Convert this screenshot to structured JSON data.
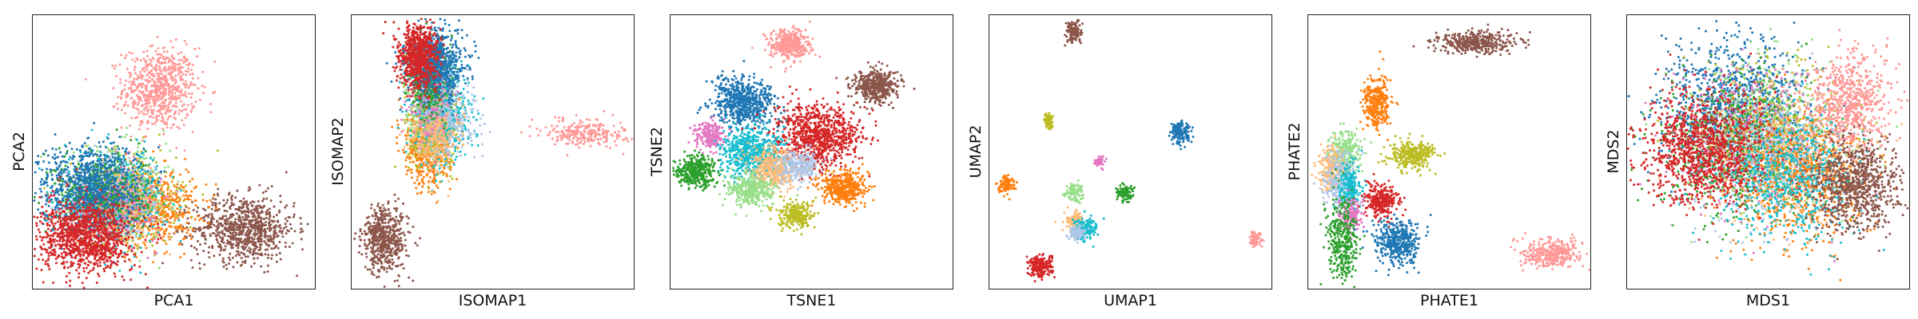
{
  "palette": {
    "blue": "#1f77b4",
    "orange": "#ff7f0e",
    "green": "#2ca02c",
    "red": "#d62728",
    "brown": "#8c564b",
    "pink": "#e377c2",
    "olive": "#bcbd22",
    "cyan": "#17becf",
    "salmon": "#ff9896",
    "lightgreen": "#98df8a",
    "peach": "#ffbb78",
    "lightblue": "#aec7e8"
  },
  "chart_data": [
    {
      "type": "scatter",
      "xlabel": "PCA1",
      "ylabel": "PCA2",
      "xlim": [
        0,
        100
      ],
      "ylim": [
        0,
        100
      ],
      "grid": false,
      "ticks": false,
      "clusters": [
        {
          "color": "salmon",
          "center": [
            45,
            73
          ],
          "spread": [
            6.5,
            7.5
          ],
          "n": 700
        },
        {
          "color": "brown",
          "center": [
            75,
            22
          ],
          "spread": [
            9,
            6
          ],
          "n": 800
        },
        {
          "color": "orange",
          "center": [
            42,
            30
          ],
          "spread": [
            8,
            7
          ],
          "n": 600
        },
        {
          "color": "olive",
          "center": [
            33,
            33
          ],
          "spread": [
            9,
            8
          ],
          "n": 450
        },
        {
          "color": "lightgreen",
          "center": [
            30,
            35
          ],
          "spread": [
            9,
            8
          ],
          "n": 450
        },
        {
          "color": "cyan",
          "center": [
            29,
            34
          ],
          "spread": [
            9,
            8
          ],
          "n": 500
        },
        {
          "color": "lightblue",
          "center": [
            27,
            33
          ],
          "spread": [
            8,
            7
          ],
          "n": 400
        },
        {
          "color": "peach",
          "center": [
            30,
            30
          ],
          "spread": [
            8,
            7
          ],
          "n": 350
        },
        {
          "color": "pink",
          "center": [
            28,
            32
          ],
          "spread": [
            8,
            7
          ],
          "n": 300
        },
        {
          "color": "green",
          "center": [
            24,
            35
          ],
          "spread": [
            8,
            7
          ],
          "n": 400
        },
        {
          "color": "blue",
          "center": [
            20,
            37
          ],
          "spread": [
            9,
            8
          ],
          "n": 900
        },
        {
          "color": "red",
          "center": [
            19,
            19
          ],
          "spread": [
            8,
            6.5
          ],
          "n": 1100
        }
      ]
    },
    {
      "type": "scatter",
      "xlabel": "ISOMAP1",
      "ylabel": "ISOMAP2",
      "xlim": [
        0,
        100
      ],
      "ylim": [
        0,
        100
      ],
      "grid": false,
      "ticks": false,
      "clusters": [
        {
          "color": "salmon",
          "center": [
            83,
            57
          ],
          "spread": [
            7,
            2.5
          ],
          "n": 250
        },
        {
          "color": "brown",
          "center": [
            12,
            18
          ],
          "spread": [
            4,
            6
          ],
          "n": 550
        },
        {
          "color": "orange",
          "center": [
            27,
            52
          ],
          "spread": [
            4,
            7
          ],
          "n": 600
        },
        {
          "color": "olive",
          "center": [
            30,
            60
          ],
          "spread": [
            5,
            8
          ],
          "n": 350
        },
        {
          "color": "lightgreen",
          "center": [
            28,
            66
          ],
          "spread": [
            4,
            8
          ],
          "n": 350
        },
        {
          "color": "cyan",
          "center": [
            32,
            64
          ],
          "spread": [
            5,
            8
          ],
          "n": 500
        },
        {
          "color": "lightblue",
          "center": [
            34,
            62
          ],
          "spread": [
            5,
            7
          ],
          "n": 350
        },
        {
          "color": "peach",
          "center": [
            29,
            56
          ],
          "spread": [
            4,
            6
          ],
          "n": 300
        },
        {
          "color": "pink",
          "center": [
            28,
            70
          ],
          "spread": [
            4,
            7
          ],
          "n": 200
        },
        {
          "color": "green",
          "center": [
            27,
            76
          ],
          "spread": [
            3.5,
            7
          ],
          "n": 300
        },
        {
          "color": "blue",
          "center": [
            30,
            82
          ],
          "spread": [
            5,
            6
          ],
          "n": 700
        },
        {
          "color": "red",
          "center": [
            24,
            85
          ],
          "spread": [
            3.5,
            6
          ],
          "n": 750
        }
      ]
    },
    {
      "type": "scatter",
      "xlabel": "TSNE1",
      "ylabel": "TSNE2",
      "xlim": [
        0,
        100
      ],
      "ylim": [
        0,
        100
      ],
      "grid": false,
      "ticks": false,
      "clusters": [
        {
          "color": "salmon",
          "center": [
            42,
            89
          ],
          "spread": [
            3.5,
            2.8
          ],
          "n": 400
        },
        {
          "color": "brown",
          "center": [
            73,
            74
          ],
          "spread": [
            4,
            3
          ],
          "n": 450
        },
        {
          "color": "blue",
          "center": [
            26,
            68
          ],
          "spread": [
            5.5,
            4.5
          ],
          "n": 650
        },
        {
          "color": "red",
          "center": [
            52,
            56
          ],
          "spread": [
            7.5,
            5.5
          ],
          "n": 900
        },
        {
          "color": "pink",
          "center": [
            14,
            56
          ],
          "spread": [
            2.8,
            2.5
          ],
          "n": 200
        },
        {
          "color": "cyan",
          "center": [
            29,
            50
          ],
          "spread": [
            5.5,
            4.5
          ],
          "n": 600
        },
        {
          "color": "peach",
          "center": [
            37,
            44
          ],
          "spread": [
            4.5,
            3.5
          ],
          "n": 400
        },
        {
          "color": "lightblue",
          "center": [
            45,
            45
          ],
          "spread": [
            3.5,
            3
          ],
          "n": 250
        },
        {
          "color": "green",
          "center": [
            9,
            43
          ],
          "spread": [
            3.5,
            2.8
          ],
          "n": 400
        },
        {
          "color": "lightgreen",
          "center": [
            28,
            36
          ],
          "spread": [
            4,
            3
          ],
          "n": 350
        },
        {
          "color": "orange",
          "center": [
            61,
            37
          ],
          "spread": [
            4,
            3
          ],
          "n": 450
        },
        {
          "color": "olive",
          "center": [
            44,
            27
          ],
          "spread": [
            3,
            2.5
          ],
          "n": 250
        }
      ]
    },
    {
      "type": "scatter",
      "xlabel": "UMAP1",
      "ylabel": "UMAP2",
      "xlim": [
        0,
        100
      ],
      "ylim": [
        0,
        100
      ],
      "grid": false,
      "ticks": false,
      "clusters": [
        {
          "color": "brown",
          "center": [
            30,
            94
          ],
          "spread": [
            1.5,
            2
          ],
          "n": 120
        },
        {
          "color": "olive",
          "center": [
            21,
            61
          ],
          "spread": [
            1,
            1.5
          ],
          "n": 70
        },
        {
          "color": "blue",
          "center": [
            68,
            57
          ],
          "spread": [
            1.8,
            2.2
          ],
          "n": 150
        },
        {
          "color": "pink",
          "center": [
            39,
            46
          ],
          "spread": [
            0.9,
            1.2
          ],
          "n": 50
        },
        {
          "color": "orange",
          "center": [
            6,
            38
          ],
          "spread": [
            1.5,
            1.5
          ],
          "n": 90
        },
        {
          "color": "lightgreen",
          "center": [
            30,
            35
          ],
          "spread": [
            1.5,
            1.8
          ],
          "n": 100
        },
        {
          "color": "green",
          "center": [
            48,
            35
          ],
          "spread": [
            1.4,
            1.4
          ],
          "n": 90
        },
        {
          "color": "peach",
          "center": [
            30,
            25
          ],
          "spread": [
            1.6,
            1.6
          ],
          "n": 100
        },
        {
          "color": "cyan",
          "center": [
            34,
            22
          ],
          "spread": [
            2,
            2
          ],
          "n": 150
        },
        {
          "color": "lightblue",
          "center": [
            31,
            20
          ],
          "spread": [
            1.4,
            1.4
          ],
          "n": 80
        },
        {
          "color": "red",
          "center": [
            18,
            8
          ],
          "spread": [
            2,
            2
          ],
          "n": 200
        },
        {
          "color": "salmon",
          "center": [
            94,
            18
          ],
          "spread": [
            1.3,
            1.5
          ],
          "n": 70
        }
      ]
    },
    {
      "type": "scatter",
      "xlabel": "PHATE1",
      "ylabel": "PHATE2",
      "xlim": [
        0,
        100
      ],
      "ylim": [
        0,
        100
      ],
      "grid": false,
      "ticks": false,
      "clusters": [
        {
          "color": "brown",
          "center": [
            60,
            90
          ],
          "spread": [
            7,
            2
          ],
          "n": 400
        },
        {
          "color": "orange",
          "center": [
            24,
            68
          ],
          "spread": [
            2.5,
            5
          ],
          "n": 300
        },
        {
          "color": "olive",
          "center": [
            37,
            49
          ],
          "spread": [
            4,
            2.5
          ],
          "n": 300
        },
        {
          "color": "lightgreen",
          "center": [
            13,
            50
          ],
          "spread": [
            2.5,
            4
          ],
          "n": 250
        },
        {
          "color": "peach",
          "center": [
            8,
            44
          ],
          "spread": [
            2.5,
            4
          ],
          "n": 200
        },
        {
          "color": "lightblue",
          "center": [
            11,
            40
          ],
          "spread": [
            3,
            5
          ],
          "n": 250
        },
        {
          "color": "cyan",
          "center": [
            15,
            37
          ],
          "spread": [
            2,
            4
          ],
          "n": 200
        },
        {
          "color": "red",
          "center": [
            26,
            32
          ],
          "spread": [
            3,
            3
          ],
          "n": 300
        },
        {
          "color": "pink",
          "center": [
            15,
            27
          ],
          "spread": [
            2,
            3
          ],
          "n": 150
        },
        {
          "color": "green",
          "center": [
            12,
            18
          ],
          "spread": [
            2.5,
            8
          ],
          "n": 350
        },
        {
          "color": "blue",
          "center": [
            32,
            17
          ],
          "spread": [
            4,
            4
          ],
          "n": 400
        },
        {
          "color": "salmon",
          "center": [
            86,
            13
          ],
          "spread": [
            5,
            2.5
          ],
          "n": 350
        }
      ]
    },
    {
      "type": "scatter",
      "xlabel": "MDS1",
      "ylabel": "MDS2",
      "xlim": [
        0,
        100
      ],
      "ylim": [
        0,
        100
      ],
      "grid": false,
      "ticks": false,
      "clusters": [
        {
          "color": "blue",
          "center": [
            38,
            67
          ],
          "spread": [
            13,
            12
          ],
          "n": 1000
        },
        {
          "color": "olive",
          "center": [
            52,
            58
          ],
          "spread": [
            14,
            13
          ],
          "n": 550
        },
        {
          "color": "lightgreen",
          "center": [
            48,
            55
          ],
          "spread": [
            14,
            13
          ],
          "n": 550
        },
        {
          "color": "pink",
          "center": [
            45,
            52
          ],
          "spread": [
            14,
            13
          ],
          "n": 450
        },
        {
          "color": "green",
          "center": [
            40,
            50
          ],
          "spread": [
            14,
            13
          ],
          "n": 550
        },
        {
          "color": "peach",
          "center": [
            55,
            48
          ],
          "spread": [
            13,
            12
          ],
          "n": 450
        },
        {
          "color": "lightblue",
          "center": [
            50,
            48
          ],
          "spread": [
            13,
            12
          ],
          "n": 450
        },
        {
          "color": "orange",
          "center": [
            62,
            40
          ],
          "spread": [
            12,
            12
          ],
          "n": 650
        },
        {
          "color": "cyan",
          "center": [
            57,
            42
          ],
          "spread": [
            12,
            12
          ],
          "n": 650
        },
        {
          "color": "red",
          "center": [
            27,
            51
          ],
          "spread": [
            11,
            10
          ],
          "n": 1100
        },
        {
          "color": "salmon",
          "center": [
            79,
            68
          ],
          "spread": [
            7,
            9
          ],
          "n": 650
        },
        {
          "color": "brown",
          "center": [
            81,
            38
          ],
          "spread": [
            8,
            8
          ],
          "n": 800
        }
      ]
    }
  ]
}
